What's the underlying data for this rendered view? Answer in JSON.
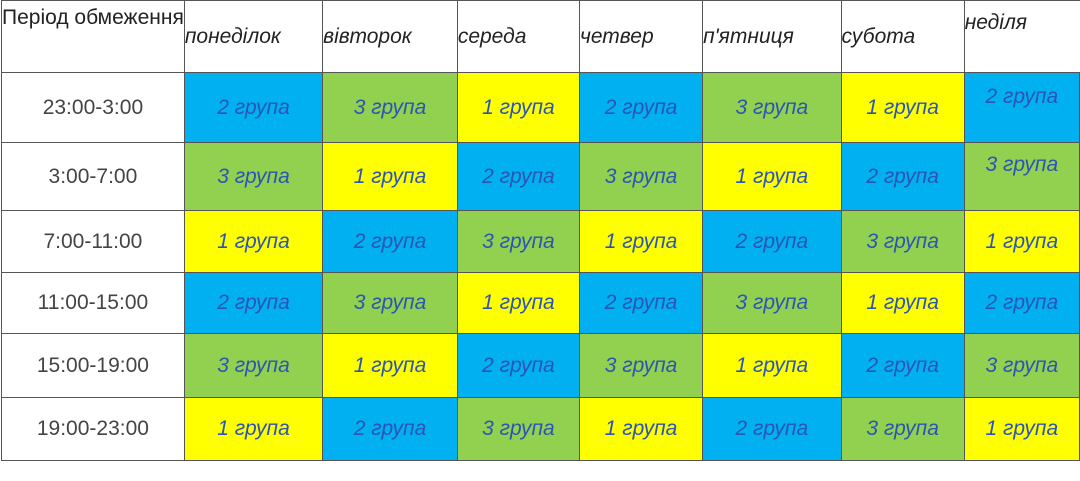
{
  "header": {
    "corner_label": "Період обмеження",
    "days": [
      "понеділок",
      "вівторок",
      "середа",
      "четвер",
      "п'ятниця",
      "субота",
      "неділя"
    ]
  },
  "rows": [
    {
      "period": "23:00-3:00",
      "cells": [
        "2 група",
        "3 група",
        "1 група",
        "2 група",
        "3 група",
        "1 група",
        "2 група"
      ]
    },
    {
      "period": "3:00-7:00",
      "cells": [
        "3 група",
        "1 група",
        "2 група",
        "3 група",
        "1 група",
        "2 група",
        "3 група"
      ]
    },
    {
      "period": "7:00-11:00",
      "cells": [
        "1 група",
        "2 група",
        "3 група",
        "1 група",
        "2 група",
        "3 група",
        "1 група"
      ]
    },
    {
      "period": "11:00-15:00",
      "cells": [
        "2 група",
        "3 група",
        "1 група",
        "2 група",
        "3 група",
        "1 група",
        "2 група"
      ]
    },
    {
      "period": "15:00-19:00",
      "cells": [
        "3 група",
        "1 група",
        "2 група",
        "3 група",
        "1 група",
        "2 група",
        "3 група"
      ]
    },
    {
      "period": "19:00-23:00",
      "cells": [
        "1 група",
        "2 група",
        "3 група",
        "1 група",
        "2 група",
        "3 група",
        "1 група"
      ]
    }
  ],
  "colors": {
    "group_1": "#ffff00",
    "group_2": "#00b0f0",
    "group_3": "#92d050",
    "cell_text": "#2a55b5",
    "border": "#555555"
  }
}
